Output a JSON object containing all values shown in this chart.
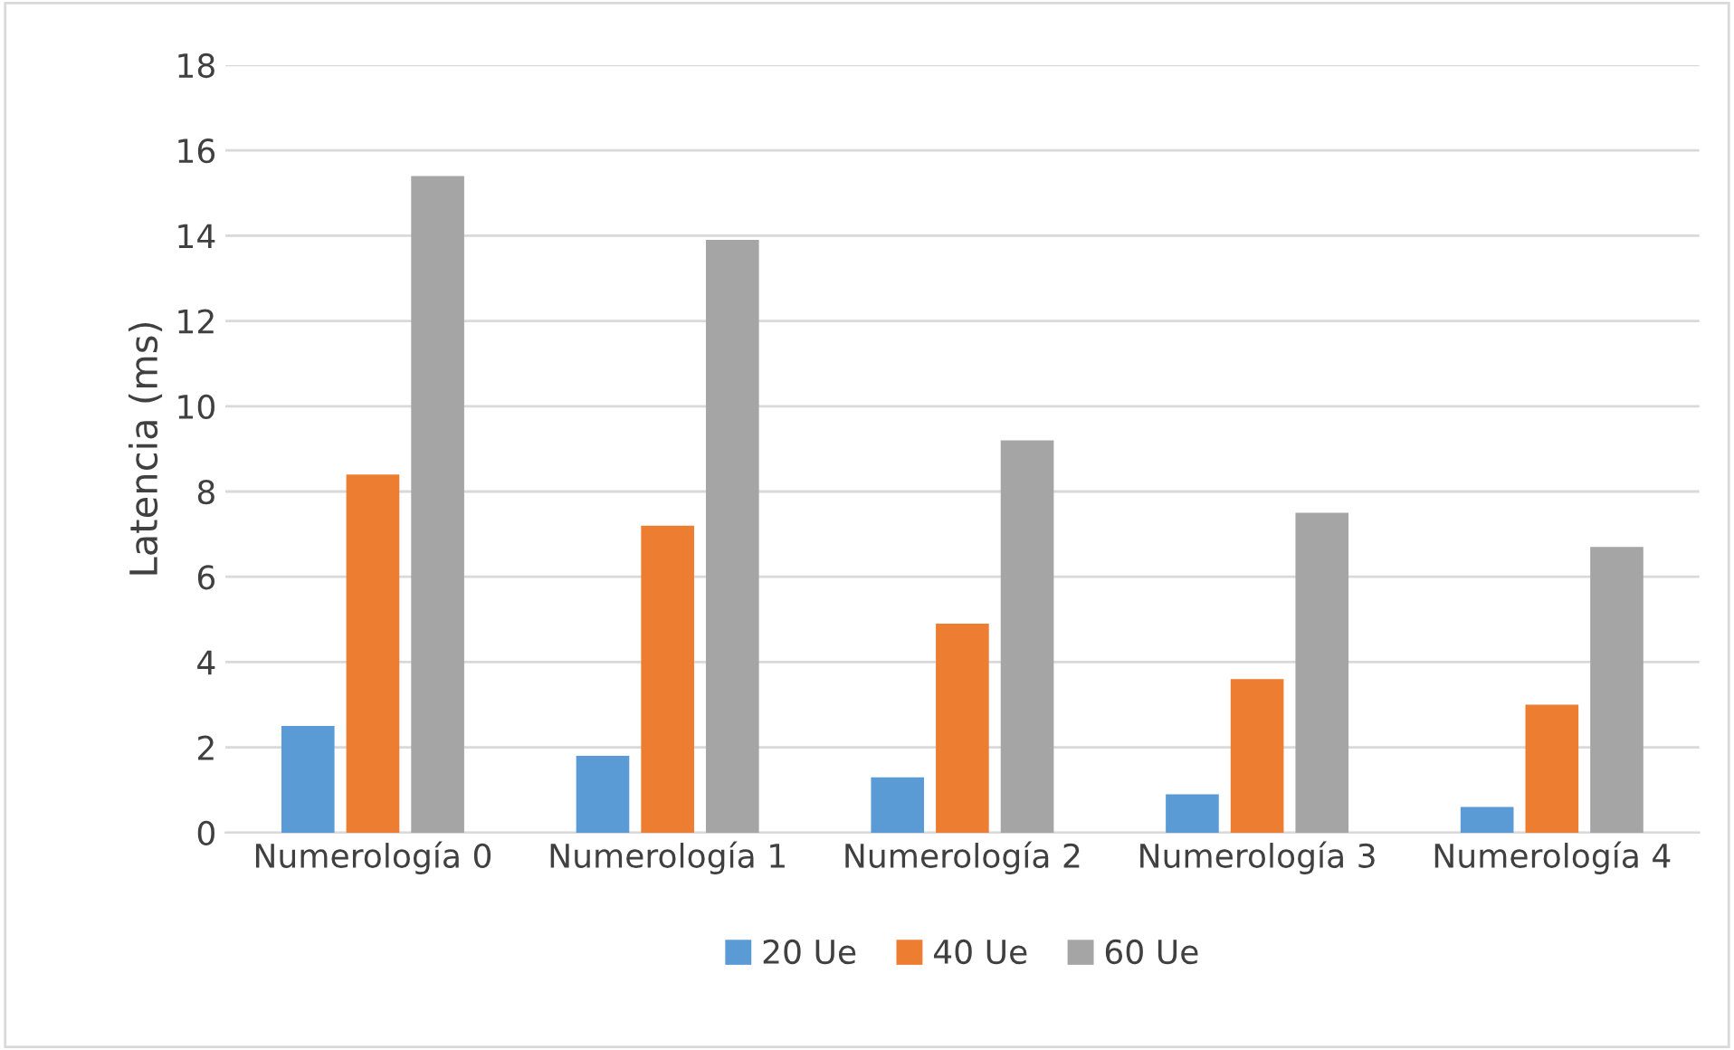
{
  "chart_data": {
    "type": "bar",
    "ylabel": "Latencia (ms)",
    "categories": [
      "Numerología 0",
      "Numerología 1",
      "Numerología 2",
      "Numerología 3",
      "Numerología 4"
    ],
    "series": [
      {
        "name": "20 Ue",
        "color": "#5b9bd5",
        "values": [
          2.5,
          1.8,
          1.3,
          0.9,
          0.6
        ]
      },
      {
        "name": "40 Ue",
        "color": "#ed7d31",
        "values": [
          8.4,
          7.2,
          4.9,
          3.6,
          3.0
        ]
      },
      {
        "name": "60 Ue",
        "color": "#a5a5a5",
        "values": [
          15.4,
          13.9,
          9.2,
          7.5,
          6.7
        ]
      }
    ],
    "ylim": [
      0,
      18
    ],
    "yticks": [
      0,
      2,
      4,
      6,
      8,
      10,
      12,
      14,
      16,
      18
    ],
    "grid": "y",
    "legend": "bottom"
  }
}
